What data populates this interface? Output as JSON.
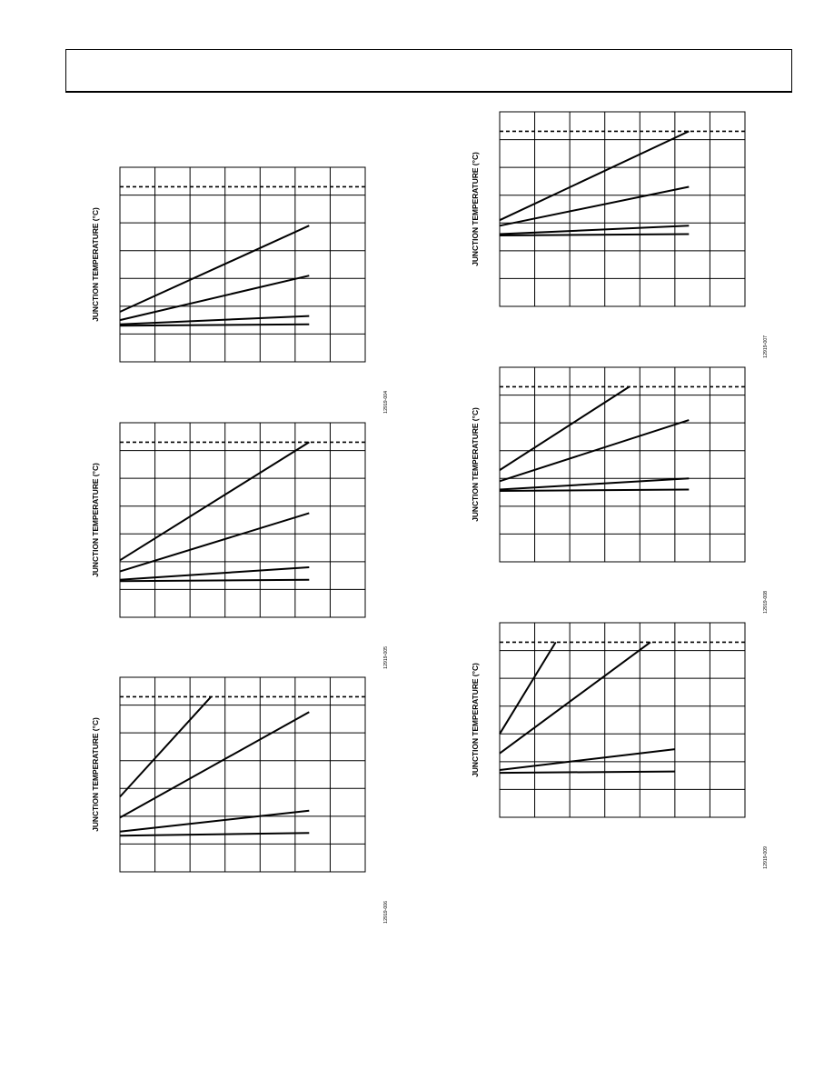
{
  "header": {
    "text": ""
  },
  "chart_data": [
    {
      "type": "line",
      "ylabel": "JUNCTION TEMPERATURE (°C)",
      "figure_id": "12919-004",
      "grid": true,
      "xlim": [
        0,
        7
      ],
      "ylim": [
        0,
        7
      ],
      "limit_line": 6.3,
      "series": [
        {
          "x": [
            0,
            5.4
          ],
          "y": [
            1.8,
            4.9
          ]
        },
        {
          "x": [
            0,
            5.4
          ],
          "y": [
            1.5,
            3.1
          ]
        },
        {
          "x": [
            0,
            5.4
          ],
          "y": [
            1.35,
            1.65
          ]
        },
        {
          "x": [
            0,
            5.4
          ],
          "y": [
            1.3,
            1.35
          ]
        }
      ]
    },
    {
      "type": "line",
      "ylabel": "JUNCTION TEMPERATURE (°C)",
      "figure_id": "12919-005",
      "grid": true,
      "xlim": [
        0,
        7
      ],
      "ylim": [
        0,
        7
      ],
      "limit_line": 6.3,
      "series": [
        {
          "x": [
            0,
            5.4
          ],
          "y": [
            2.05,
            6.3
          ]
        },
        {
          "x": [
            0,
            5.4
          ],
          "y": [
            1.65,
            3.75
          ]
        },
        {
          "x": [
            0,
            5.4
          ],
          "y": [
            1.35,
            1.8
          ]
        },
        {
          "x": [
            0,
            5.4
          ],
          "y": [
            1.3,
            1.35
          ]
        }
      ]
    },
    {
      "type": "line",
      "ylabel": "JUNCTION TEMPERATURE (°C)",
      "figure_id": "12919-006",
      "grid": true,
      "xlim": [
        0,
        7
      ],
      "ylim": [
        0,
        7
      ],
      "limit_line": 6.3,
      "series": [
        {
          "x": [
            0,
            2.6
          ],
          "y": [
            2.7,
            6.3
          ]
        },
        {
          "x": [
            0,
            5.4
          ],
          "y": [
            1.95,
            5.75
          ]
        },
        {
          "x": [
            0,
            5.4
          ],
          "y": [
            1.45,
            2.2
          ]
        },
        {
          "x": [
            0,
            5.4
          ],
          "y": [
            1.3,
            1.4
          ]
        }
      ]
    },
    {
      "type": "line",
      "ylabel": "JUNCTION TEMPERATURE (°C)",
      "figure_id": "12919-007",
      "grid": true,
      "xlim": [
        0,
        7
      ],
      "ylim": [
        0,
        7
      ],
      "limit_line": 6.3,
      "series": [
        {
          "x": [
            0,
            5.4
          ],
          "y": [
            3.1,
            6.3
          ]
        },
        {
          "x": [
            0,
            5.4
          ],
          "y": [
            2.9,
            4.3
          ]
        },
        {
          "x": [
            0,
            5.4
          ],
          "y": [
            2.6,
            2.9
          ]
        },
        {
          "x": [
            0,
            5.4
          ],
          "y": [
            2.55,
            2.6
          ]
        }
      ]
    },
    {
      "type": "line",
      "ylabel": "JUNCTION TEMPERATURE (°C)",
      "figure_id": "12919-008",
      "grid": true,
      "xlim": [
        0,
        7
      ],
      "ylim": [
        0,
        7
      ],
      "limit_line": 6.3,
      "series": [
        {
          "x": [
            0,
            3.7
          ],
          "y": [
            3.3,
            6.3
          ]
        },
        {
          "x": [
            0,
            5.4
          ],
          "y": [
            2.9,
            5.1
          ]
        },
        {
          "x": [
            0,
            5.4
          ],
          "y": [
            2.6,
            3.0
          ]
        },
        {
          "x": [
            0,
            5.4
          ],
          "y": [
            2.55,
            2.6
          ]
        }
      ]
    },
    {
      "type": "line",
      "ylabel": "JUNCTION TEMPERATURE (°C)",
      "figure_id": "12919-009",
      "grid": true,
      "xlim": [
        0,
        7
      ],
      "ylim": [
        0,
        7
      ],
      "limit_line": 6.3,
      "series": [
        {
          "x": [
            0,
            1.6
          ],
          "y": [
            3.0,
            6.3
          ]
        },
        {
          "x": [
            0,
            4.3
          ],
          "y": [
            2.3,
            6.3
          ]
        },
        {
          "x": [
            0,
            5.0
          ],
          "y": [
            1.7,
            2.45
          ]
        },
        {
          "x": [
            0,
            5.0
          ],
          "y": [
            1.6,
            1.65
          ]
        }
      ]
    }
  ]
}
